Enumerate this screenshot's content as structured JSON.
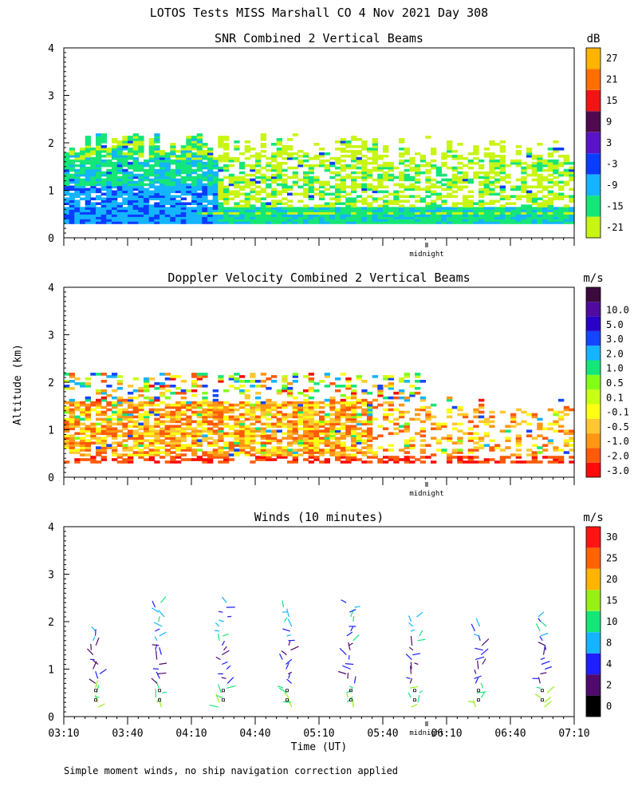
{
  "title": "LOTOS Tests MISS Marshall CO   4 Nov 2021 Day 308",
  "shared_ylabel": "Altitude (km)",
  "midnight_label": "midnight",
  "footnote": "Simple moment winds, no ship navigation correction applied",
  "colors": {
    "snr_scale": [
      "#c8f514",
      "#14e678",
      "#14b4ff",
      "#0a3cff",
      "#5a14c8",
      "#500a50",
      "#f01414",
      "#ff6e00",
      "#ffb400"
    ],
    "vel_scale": [
      "#ff0a0a",
      "#ff5a0a",
      "#ff9614",
      "#ffc832",
      "#ffff14",
      "#c8ff14",
      "#82ff14",
      "#14e678",
      "#14b4ff",
      "#1446ff",
      "#2800c8",
      "#500aa0",
      "#3c0a3c"
    ],
    "wind_scale": [
      "#000000",
      "#500a6e",
      "#1e1eff",
      "#14b4ff",
      "#14e678",
      "#96f014",
      "#ffb400",
      "#ff6400",
      "#ff1414"
    ]
  },
  "chart_data": [
    {
      "type": "heatmap",
      "name": "snr",
      "title": "SNR Combined 2 Vertical Beams",
      "unit": "dB",
      "ylim": [
        0,
        4
      ],
      "yticks": [
        "0",
        "1",
        "2",
        "3",
        "4"
      ],
      "xlim": [
        "03:10",
        "07:10"
      ],
      "colorbar_labels": [
        "-21",
        "-15",
        "-9",
        "-3",
        "3",
        "9",
        "15",
        "21",
        "27"
      ],
      "shown_range": {
        "altitude_km": [
          0.3,
          2.5
        ],
        "dB": [
          -21,
          0
        ]
      },
      "lowest_band_km": [
        0.3,
        0.65
      ]
    },
    {
      "type": "heatmap",
      "name": "velocity",
      "title": "Doppler Velocity Combined 2 Vertical Beams",
      "unit": "m/s",
      "ylim": [
        0,
        4
      ],
      "yticks": [
        "0",
        "1",
        "2",
        "3",
        "4"
      ],
      "xlim": [
        "03:10",
        "07:10"
      ],
      "colorbar_labels": [
        "-3.0",
        "-2.0",
        "-1.0",
        "-0.5",
        "-0.1",
        "0.1",
        "0.5",
        "1.0",
        "2.0",
        "3.0",
        "5.0",
        "10.0"
      ],
      "shown_range": {
        "altitude_km": [
          0.3,
          2.3
        ],
        "m/s": [
          -3.0,
          1.0
        ]
      }
    },
    {
      "type": "scatter",
      "name": "winds",
      "title": "Winds (10 minutes)",
      "unit": "m/s",
      "ylim": [
        0,
        4
      ],
      "yticks": [
        "0",
        "1",
        "2",
        "3",
        "4"
      ],
      "xlabel": "Time (UT)",
      "xticks": [
        "03:10",
        "03:40",
        "04:10",
        "04:40",
        "05:10",
        "05:40",
        "06:10",
        "06:40",
        "07:10"
      ],
      "colorbar_labels": [
        "0",
        "2",
        "4",
        "8",
        "10",
        "15",
        "20",
        "25",
        "30"
      ],
      "profiles": [
        {
          "time": "03:25",
          "top_km": 1.75
        },
        {
          "time": "03:55",
          "top_km": 2.4
        },
        {
          "time": "04:25",
          "top_km": 2.35
        },
        {
          "time": "04:55",
          "top_km": 2.3
        },
        {
          "time": "05:25",
          "top_km": 2.35
        },
        {
          "time": "05:55",
          "top_km": 2.1
        },
        {
          "time": "06:25",
          "top_km": 1.85
        },
        {
          "time": "06:55",
          "top_km": 2.15
        }
      ]
    }
  ]
}
